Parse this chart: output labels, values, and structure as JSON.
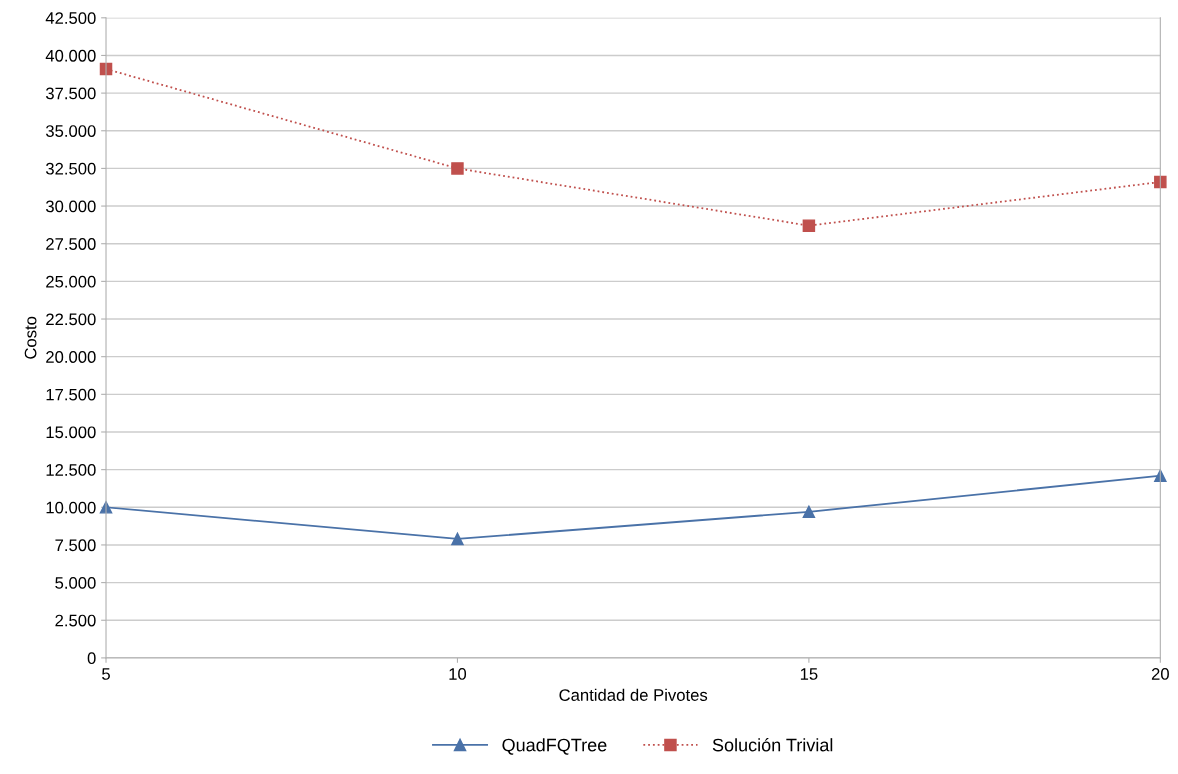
{
  "chart_data": {
    "type": "line",
    "xlabel": "Cantidad de Pivotes",
    "ylabel": "Costo",
    "x": [
      5,
      10,
      15,
      20
    ],
    "series": [
      {
        "name": "QuadFQTree",
        "color": "#4a72a8",
        "values": [
          10000,
          7900,
          9700,
          12100
        ],
        "marker": "triangle",
        "line_style": "solid"
      },
      {
        "name": "Solución Trivial",
        "color": "#c0504d",
        "values": [
          39100,
          32500,
          28700,
          31600
        ],
        "marker": "square",
        "line_style": "dotted"
      }
    ],
    "xlim": [
      5,
      20
    ],
    "xticks": [
      5,
      10,
      15,
      20
    ],
    "ylim": [
      0,
      42500
    ],
    "yticks": [
      0,
      {
        "value": 2500,
        "label": "2.500"
      },
      {
        "value": 5000,
        "label": "5.000"
      },
      {
        "value": 7500,
        "label": "7.500"
      },
      {
        "value": 10000,
        "label": "10.000"
      },
      {
        "value": 12500,
        "label": "12.500"
      },
      {
        "value": 15000,
        "label": "15.000"
      },
      {
        "value": 17500,
        "label": "17.500"
      },
      {
        "value": 20000,
        "label": "20.000"
      },
      {
        "value": 22500,
        "label": "22.500"
      },
      {
        "value": 25000,
        "label": "25.000"
      },
      {
        "value": 27500,
        "label": "27.500"
      },
      {
        "value": 30000,
        "label": "30.000"
      },
      {
        "value": 32500,
        "label": "32.500"
      },
      {
        "value": 35000,
        "label": "35.000"
      },
      {
        "value": 37500,
        "label": "37.500"
      },
      {
        "value": 40000,
        "label": "40.000"
      },
      {
        "value": 42500,
        "label": "42.500"
      }
    ],
    "grid": "y",
    "legend": "bottom"
  }
}
